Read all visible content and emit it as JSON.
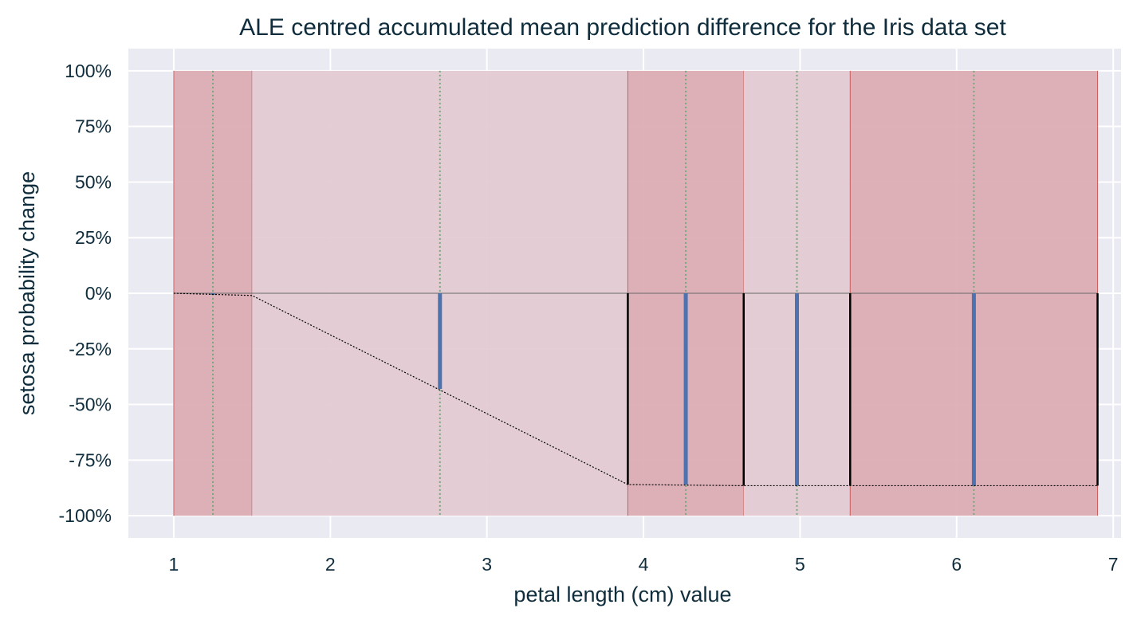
{
  "chart_data": {
    "type": "line",
    "title": "ALE centred accumulated mean prediction difference for the Iris data set",
    "xlabel": "petal length (cm) value",
    "ylabel": "setosa probability change",
    "xlim": [
      0.71,
      7.05
    ],
    "ylim": [
      -110,
      110
    ],
    "x_ticks": [
      1,
      2,
      3,
      4,
      5,
      6,
      7
    ],
    "x_tick_labels": [
      "1",
      "2",
      "3",
      "4",
      "5",
      "6",
      "7"
    ],
    "y_ticks": [
      100,
      75,
      50,
      25,
      0,
      -25,
      -50,
      -75,
      -100
    ],
    "y_tick_labels": [
      "100%",
      "75%",
      "50%",
      "25%",
      "0%",
      "-25%",
      "-50%",
      "-75%",
      "-100%"
    ],
    "bins": [
      {
        "x0": 1.0,
        "x1": 1.5,
        "shade": "dark",
        "centre": 1.25,
        "value_at_centre": -0.5
      },
      {
        "x0": 1.5,
        "x1": 3.9,
        "shade": "light",
        "centre": 2.7,
        "value_at_centre": -43
      },
      {
        "x0": 3.9,
        "x1": 4.64,
        "shade": "dark",
        "centre": 4.27,
        "value_at_centre": -86
      },
      {
        "x0": 4.64,
        "x1": 5.32,
        "shade": "light",
        "centre": 4.98,
        "value_at_centre": -86.5
      },
      {
        "x0": 5.32,
        "x1": 6.9,
        "shade": "dark",
        "centre": 6.11,
        "value_at_centre": -86.5
      }
    ],
    "accumulated_line": {
      "x": [
        1.0,
        1.5,
        3.9,
        4.64,
        5.32,
        6.9
      ],
      "y": [
        0,
        -1,
        -86,
        -86.5,
        -86.5,
        -86.5
      ]
    },
    "colors": {
      "background": "#eaeaf2",
      "grid": "#ffffff",
      "dark_bin": "#dbaab3",
      "light_bin": "#e2c9d0",
      "bin_edge": "#cd5c5c",
      "centre_line": "#74a87a",
      "mean_bar": "#4c72b0",
      "edge_bar": "#000000",
      "zero_line": "#666666",
      "text": "#0f2d3c"
    }
  }
}
